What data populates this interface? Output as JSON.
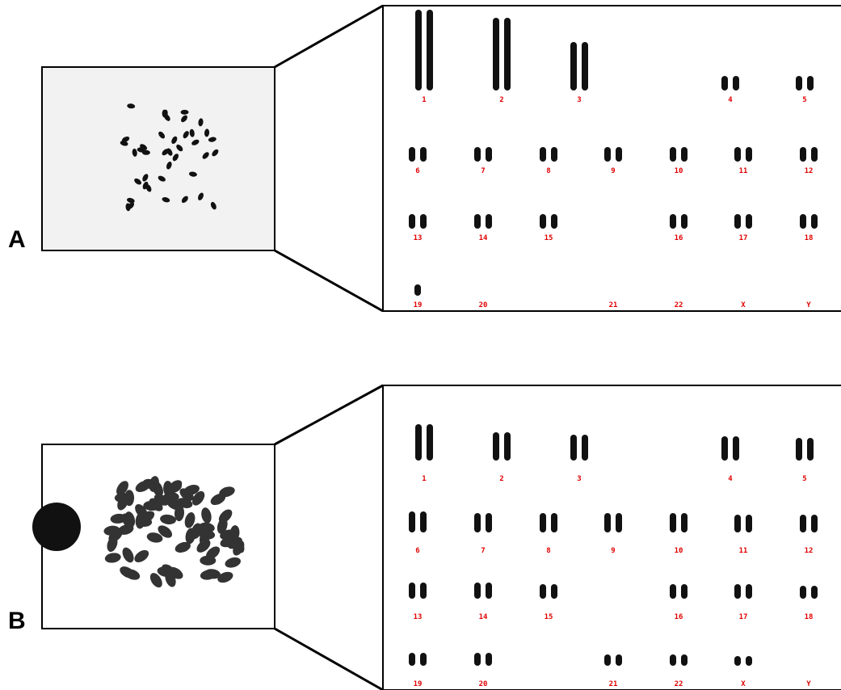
{
  "panels": [
    {
      "label": "A",
      "karyotype": [
        "1",
        "2",
        "3",
        "4",
        "5",
        "6",
        "7",
        "8",
        "9",
        "10",
        "11",
        "12",
        "13",
        "14",
        "15",
        "16",
        "17",
        "18",
        "19",
        "20",
        "21",
        "22",
        "X",
        "Y"
      ]
    },
    {
      "label": "B",
      "karyotype": [
        "1",
        "2",
        "3",
        "4",
        "5",
        "6",
        "7",
        "8",
        "9",
        "10",
        "11",
        "12",
        "13",
        "14",
        "15",
        "16",
        "17",
        "18",
        "19",
        "20",
        "21",
        "22",
        "X",
        "Y"
      ]
    }
  ]
}
